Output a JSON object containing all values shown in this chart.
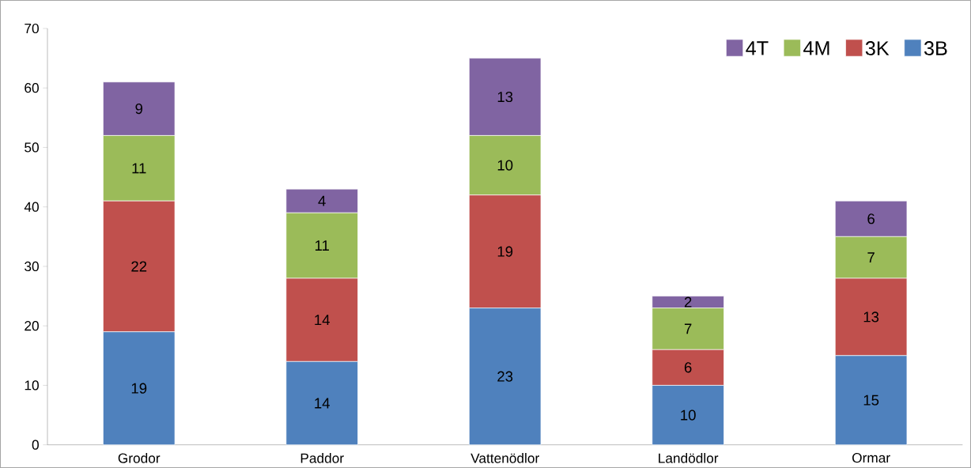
{
  "chart_data": {
    "type": "bar",
    "stacked": true,
    "data_labels": true,
    "legend": "top right",
    "categories": [
      "Grodor",
      "Paddor",
      "Vattenödlor",
      "Landödlor",
      "Ormar"
    ],
    "ylim": [
      0,
      70
    ],
    "yticks": [
      0,
      10,
      20,
      30,
      40,
      50,
      60,
      70
    ],
    "series": [
      {
        "name": "3B",
        "color": "#4f81bd",
        "values": [
          19,
          14,
          23,
          10,
          15
        ]
      },
      {
        "name": "3K",
        "color": "#c0504d",
        "values": [
          22,
          14,
          19,
          6,
          13
        ]
      },
      {
        "name": "4M",
        "color": "#9bbb59",
        "values": [
          11,
          11,
          10,
          7,
          7
        ]
      },
      {
        "name": "4T",
        "color": "#8064a2",
        "values": [
          9,
          4,
          13,
          2,
          6
        ]
      }
    ]
  }
}
